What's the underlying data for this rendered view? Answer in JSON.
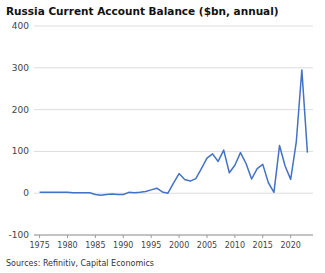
{
  "chart_data": {
    "type": "line",
    "title": "Russia Current Account Balance ($bn, annual)",
    "source": "Sources: Refinitiv, Capital Economics",
    "color": "#4472C4",
    "xlim": [
      1974,
      2024
    ],
    "xticks": [
      1975,
      1980,
      1985,
      1990,
      1995,
      2000,
      2005,
      2010,
      2015,
      2020
    ],
    "ylim": [
      -100,
      400
    ],
    "yticks": [
      -100,
      0,
      100,
      200,
      300,
      400
    ],
    "grid": true,
    "x": [
      1975,
      1976,
      1977,
      1978,
      1979,
      1980,
      1981,
      1982,
      1983,
      1984,
      1985,
      1986,
      1987,
      1988,
      1989,
      1990,
      1991,
      1992,
      1993,
      1994,
      1995,
      1996,
      1997,
      1998,
      1999,
      2000,
      2001,
      2002,
      2003,
      2004,
      2005,
      2006,
      2007,
      2008,
      2009,
      2010,
      2011,
      2012,
      2013,
      2014,
      2015,
      2016,
      2017,
      2018,
      2019,
      2020,
      2021,
      2022,
      2023
    ],
    "values": [
      2,
      2,
      2,
      2,
      2,
      2,
      1,
      1,
      1,
      1,
      -3,
      -5,
      -3,
      -2,
      -3,
      -3,
      2,
      1,
      2,
      4,
      8,
      12,
      3,
      0,
      24,
      47,
      33,
      29,
      35,
      59,
      84,
      94,
      76,
      103,
      49,
      67,
      97,
      71,
      34,
      59,
      69,
      25,
      2,
      114,
      65,
      33,
      122,
      295,
      97
    ]
  }
}
